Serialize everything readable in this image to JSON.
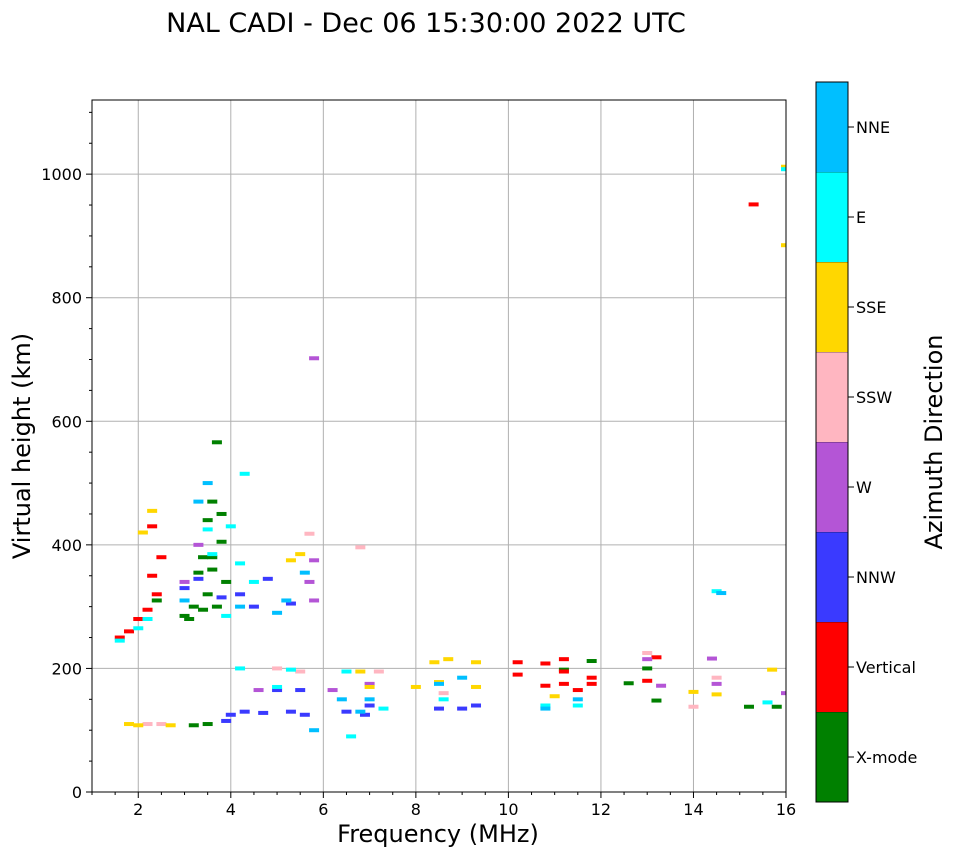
{
  "chart_data": {
    "type": "scatter",
    "title": "NAL CADI - Dec 06 15:30:00 2022 UTC",
    "xlabel": "Frequency (MHz)",
    "ylabel": "Virtual height (km)",
    "xlim": [
      1,
      16
    ],
    "ylim": [
      0,
      1120
    ],
    "xticks": [
      2,
      4,
      6,
      8,
      10,
      12,
      14,
      16
    ],
    "yticks": [
      0,
      200,
      400,
      600,
      800,
      1000
    ],
    "grid": true,
    "colorbar": {
      "label": "Azimuth Direction",
      "categories": [
        {
          "name": "X-mode",
          "color": "#008000"
        },
        {
          "name": "Vertical",
          "color": "#ff0000"
        },
        {
          "name": "NNW",
          "color": "#3a3aff"
        },
        {
          "name": "W",
          "color": "#b455d6"
        },
        {
          "name": "SSW",
          "color": "#ffb6c1"
        },
        {
          "name": "SSE",
          "color": "#ffd700"
        },
        {
          "name": "E",
          "color": "#00ffff"
        },
        {
          "name": "NNE",
          "color": "#00bfff"
        }
      ]
    },
    "series": [
      {
        "name": "X-mode",
        "points": [
          [
            3.7,
            566
          ],
          [
            3.6,
            470
          ],
          [
            3.5,
            440
          ],
          [
            3.8,
            405
          ],
          [
            3.4,
            380
          ],
          [
            3.6,
            360
          ],
          [
            3.9,
            340
          ],
          [
            3.5,
            320
          ],
          [
            3.2,
            300
          ],
          [
            3.0,
            285
          ],
          [
            3.7,
            300
          ],
          [
            3.4,
            295
          ],
          [
            3.1,
            280
          ],
          [
            3.6,
            380
          ],
          [
            3.3,
            355
          ],
          [
            3.8,
            450
          ],
          [
            2.4,
            310
          ],
          [
            3.5,
            110
          ],
          [
            3.2,
            108
          ],
          [
            11.8,
            212
          ],
          [
            11.2,
            198
          ],
          [
            12.6,
            176
          ],
          [
            13.2,
            148
          ],
          [
            15.2,
            138
          ],
          [
            15.8,
            138
          ],
          [
            13.0,
            200
          ]
        ]
      },
      {
        "name": "Vertical",
        "points": [
          [
            1.6,
            250
          ],
          [
            1.8,
            260
          ],
          [
            2.0,
            280
          ],
          [
            2.2,
            295
          ],
          [
            2.4,
            320
          ],
          [
            2.3,
            350
          ],
          [
            2.5,
            380
          ],
          [
            2.3,
            430
          ],
          [
            10.2,
            210
          ],
          [
            10.2,
            190
          ],
          [
            10.8,
            208
          ],
          [
            11.2,
            215
          ],
          [
            11.2,
            195
          ],
          [
            11.8,
            185
          ],
          [
            11.2,
            175
          ],
          [
            11.5,
            165
          ],
          [
            11.8,
            175
          ],
          [
            13.2,
            218
          ],
          [
            13.0,
            180
          ],
          [
            15.3,
            951
          ],
          [
            10.8,
            172
          ]
        ]
      },
      {
        "name": "NNW",
        "points": [
          [
            3.0,
            330
          ],
          [
            3.3,
            345
          ],
          [
            3.8,
            315
          ],
          [
            4.2,
            320
          ],
          [
            4.5,
            300
          ],
          [
            4.8,
            345
          ],
          [
            5.3,
            305
          ],
          [
            4.3,
            130
          ],
          [
            4.7,
            128
          ],
          [
            5.3,
            130
          ],
          [
            5.6,
            125
          ],
          [
            6.5,
            130
          ],
          [
            6.9,
            125
          ],
          [
            7.0,
            140
          ],
          [
            5.0,
            165
          ],
          [
            5.5,
            165
          ],
          [
            8.5,
            135
          ],
          [
            9.0,
            135
          ],
          [
            9.3,
            140
          ],
          [
            4.0,
            125
          ],
          [
            3.9,
            115
          ]
        ]
      },
      {
        "name": "W",
        "points": [
          [
            5.8,
            702
          ],
          [
            3.0,
            340
          ],
          [
            3.3,
            400
          ],
          [
            5.8,
            375
          ],
          [
            5.7,
            340
          ],
          [
            5.8,
            310
          ],
          [
            4.6,
            165
          ],
          [
            6.2,
            165
          ],
          [
            7.0,
            175
          ],
          [
            13.0,
            215
          ],
          [
            14.4,
            216
          ],
          [
            14.5,
            175
          ],
          [
            16.0,
            160
          ],
          [
            13.3,
            172
          ]
        ]
      },
      {
        "name": "SSW",
        "points": [
          [
            5.7,
            418
          ],
          [
            6.8,
            396
          ],
          [
            2.2,
            110
          ],
          [
            2.5,
            110
          ],
          [
            5.0,
            200
          ],
          [
            5.5,
            195
          ],
          [
            7.2,
            195
          ],
          [
            8.6,
            160
          ],
          [
            14.0,
            138
          ],
          [
            14.5,
            185
          ],
          [
            13.0,
            225
          ]
        ]
      },
      {
        "name": "SSE",
        "points": [
          [
            2.3,
            455
          ],
          [
            2.1,
            420
          ],
          [
            1.8,
            110
          ],
          [
            2.0,
            108
          ],
          [
            2.7,
            108
          ],
          [
            5.5,
            385
          ],
          [
            5.3,
            375
          ],
          [
            6.8,
            195
          ],
          [
            7.0,
            170
          ],
          [
            8.0,
            170
          ],
          [
            8.4,
            210
          ],
          [
            8.7,
            215
          ],
          [
            9.3,
            210
          ],
          [
            9.3,
            170
          ],
          [
            11.0,
            155
          ],
          [
            14.0,
            162
          ],
          [
            14.5,
            158
          ],
          [
            15.7,
            198
          ],
          [
            16.0,
            885
          ],
          [
            16.0,
            1012
          ],
          [
            8.5,
            178
          ]
        ]
      },
      {
        "name": "E",
        "points": [
          [
            1.6,
            245
          ],
          [
            2.0,
            265
          ],
          [
            2.2,
            280
          ],
          [
            3.5,
            425
          ],
          [
            3.6,
            385
          ],
          [
            4.2,
            370
          ],
          [
            4.0,
            430
          ],
          [
            4.3,
            515
          ],
          [
            3.9,
            285
          ],
          [
            4.2,
            200
          ],
          [
            5.3,
            198
          ],
          [
            6.5,
            195
          ],
          [
            6.6,
            90
          ],
          [
            7.3,
            135
          ],
          [
            8.6,
            150
          ],
          [
            10.8,
            140
          ],
          [
            11.5,
            140
          ],
          [
            14.5,
            325
          ],
          [
            15.6,
            145
          ],
          [
            16.0,
            1008
          ],
          [
            4.5,
            340
          ],
          [
            5.0,
            170
          ]
        ]
      },
      {
        "name": "NNE",
        "points": [
          [
            3.0,
            310
          ],
          [
            3.5,
            500
          ],
          [
            3.3,
            470
          ],
          [
            4.2,
            300
          ],
          [
            5.0,
            290
          ],
          [
            5.2,
            310
          ],
          [
            5.6,
            355
          ],
          [
            6.4,
            150
          ],
          [
            6.8,
            130
          ],
          [
            7.0,
            150
          ],
          [
            8.5,
            175
          ],
          [
            9.0,
            185
          ],
          [
            10.8,
            135
          ],
          [
            11.5,
            150
          ],
          [
            14.6,
            322
          ],
          [
            5.8,
            100
          ]
        ]
      }
    ]
  }
}
